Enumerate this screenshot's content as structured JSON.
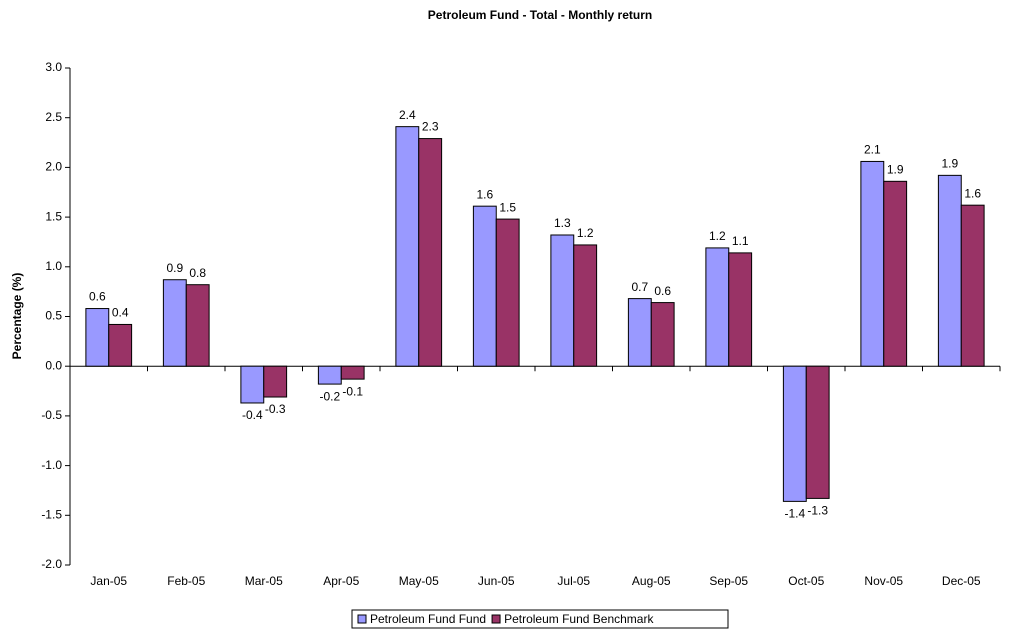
{
  "chart_data": {
    "type": "bar",
    "title": "Petroleum Fund - Total - Monthly return",
    "y_label": "Percentage (%)",
    "categories": [
      "Jan-05",
      "Feb-05",
      "Mar-05",
      "Apr-05",
      "May-05",
      "Jun-05",
      "Jul-05",
      "Aug-05",
      "Sep-05",
      "Oct-05",
      "Nov-05",
      "Dec-05"
    ],
    "series": [
      {
        "name": "Petroleum Fund Fund",
        "color": "#9999ff",
        "values": [
          0.58,
          0.87,
          -0.37,
          -0.18,
          2.41,
          1.61,
          1.32,
          0.68,
          1.19,
          -1.36,
          2.06,
          1.92
        ],
        "value_labels": [
          "0.6",
          "0.9",
          "-0.4",
          "-0.2",
          "2.4",
          "1.6",
          "1.3",
          "0.7",
          "1.2",
          "-1.4",
          "2.1",
          "1.9"
        ]
      },
      {
        "name": "Petroleum Fund Benchmark",
        "color": "#993366",
        "values": [
          0.42,
          0.82,
          -0.31,
          -0.13,
          2.29,
          1.48,
          1.22,
          0.64,
          1.14,
          -1.33,
          1.86,
          1.62
        ],
        "value_labels": [
          "0.4",
          "0.8",
          "-0.3",
          "-0.1",
          "2.3",
          "1.5",
          "1.2",
          "0.6",
          "1.1",
          "-1.3",
          "1.9",
          "1.6"
        ]
      }
    ],
    "ylim": [
      -2,
      3
    ],
    "yticks": [
      {
        "value": -2,
        "label": "-2.0"
      },
      -1.5,
      {
        "value": -1,
        "label": "-1.0"
      },
      -0.5,
      {
        "value": 0,
        "label": "0.0"
      },
      0.5,
      {
        "value": 1,
        "label": "1.0"
      },
      1.5,
      {
        "value": 2,
        "label": "2.0"
      },
      2.5,
      {
        "value": 3,
        "label": "3.0"
      }
    ],
    "grid": false,
    "legend": "bottom"
  }
}
